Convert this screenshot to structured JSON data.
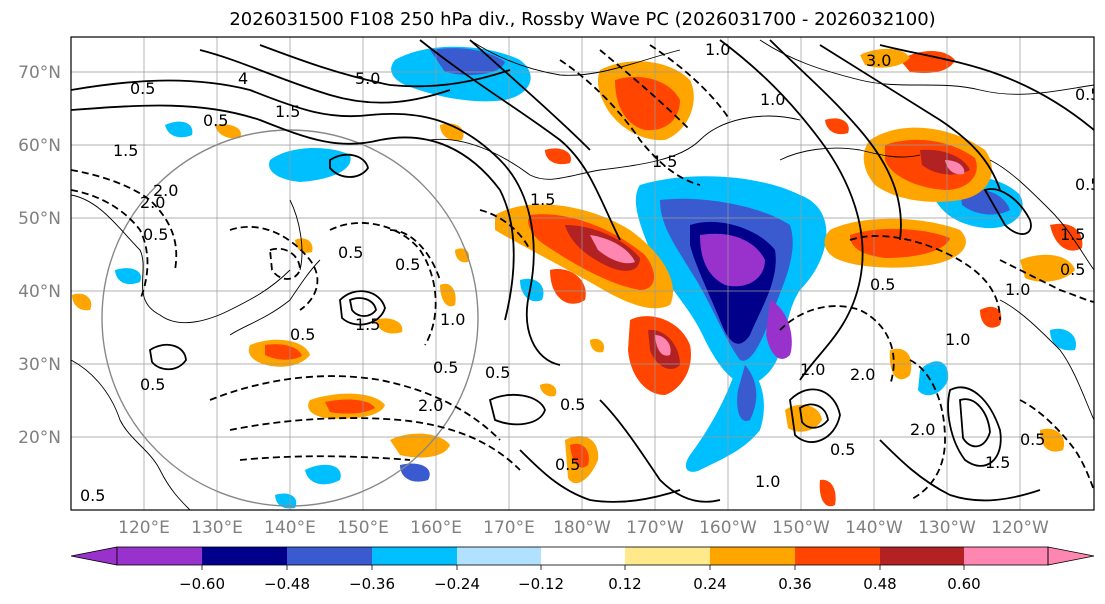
{
  "title": "2026031500 F108 250 hPa div., Rossby Wave PC (2026031700 - 2026032100)",
  "lat_labels": [
    "70°N",
    "60°N",
    "50°N",
    "40°N",
    "30°N",
    "20°N"
  ],
  "lon_labels": [
    "120°E",
    "130°E",
    "140°E",
    "150°E",
    "160°E",
    "170°E",
    "180°W",
    "170°W",
    "160°W",
    "150°W",
    "140°W",
    "130°W",
    "120°W"
  ],
  "colorbar": {
    "ticks": [
      "−0.60",
      "−0.48",
      "−0.36",
      "−0.24",
      "−0.12",
      "0.12",
      "0.24",
      "0.36",
      "0.48",
      "0.60"
    ],
    "colors": [
      "#9932cc",
      "#00008b",
      "#3a5bd0",
      "#00bfff",
      "#b0e2ff",
      "#ffffff",
      "#ffe98a",
      "#ffa500",
      "#ff4500",
      "#b22222",
      "#ff86b0"
    ]
  },
  "contour_labels": [
    "0.5",
    "5.0",
    "3.0",
    "0.5",
    "1.5",
    "4",
    "1.5",
    "1.5",
    "2.0",
    "0.5",
    "1.0",
    "1.5",
    "1.0",
    "0.5",
    "2.0",
    "0.5",
    "1.0",
    "0.5",
    "2.0",
    "0.5",
    "1.5",
    "0.5",
    "1.0",
    "0.5",
    "0.5",
    "0.5",
    "1.0",
    "0.5",
    "1.0",
    "1.0",
    "2.0",
    "0.5",
    "1.5",
    "0.5",
    "0.5",
    "0.5",
    "1.5",
    "2.0",
    "0.5",
    "0.5"
  ]
}
